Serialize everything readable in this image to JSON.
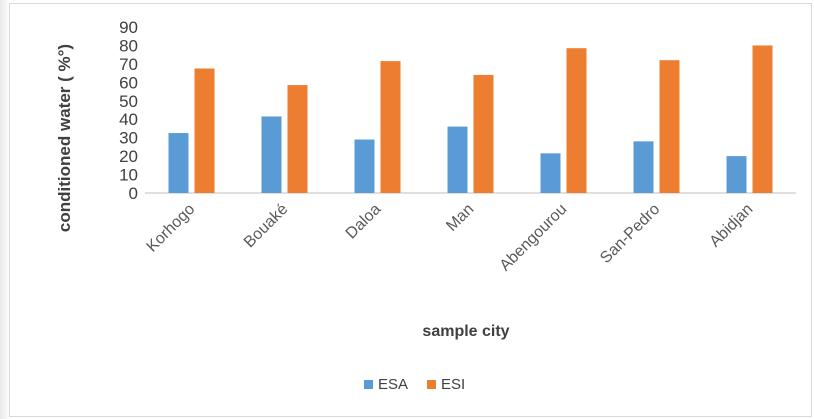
{
  "chart_data": {
    "type": "bar",
    "categories": [
      "Korhogo",
      "Bouaké",
      "Daloa",
      "Man",
      "Abengourou",
      "San-Pedro",
      "Abidjan"
    ],
    "series": [
      {
        "name": "ESA",
        "color": "#5b9bd5",
        "values": [
          32.5,
          41.5,
          29,
          36,
          21.5,
          28,
          20
        ]
      },
      {
        "name": "ESI",
        "color": "#ed7d31",
        "values": [
          67.5,
          58.5,
          71.5,
          64,
          78.5,
          72,
          80
        ]
      }
    ],
    "ylabel": "conditioned water  ( %°)",
    "xlabel": "sample city",
    "ylim": [
      0,
      90
    ],
    "yticks": [
      "0",
      "10",
      "20",
      "30",
      "40",
      "50",
      "60",
      "70",
      "80",
      "90"
    ],
    "grid": false,
    "legend_position": "bottom"
  }
}
